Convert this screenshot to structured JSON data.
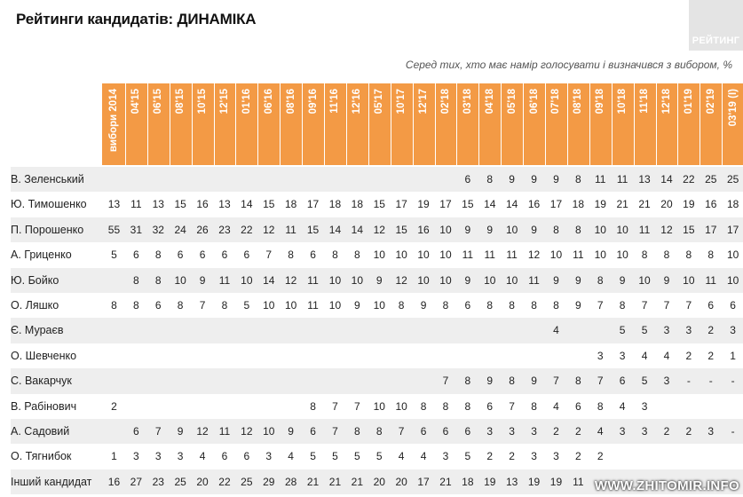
{
  "title": "Рейтинги кандидатів: ДИНАМІКА",
  "logo_text": "РЕЙТИНГ",
  "subtitle": "Серед тих, хто має намір голосувати і визначився з вибором, %",
  "watermark": "WWW.ZHITOMIR.INFO",
  "colors": {
    "header": "#f39a45",
    "row_shade": "#eeeeee"
  },
  "chart_data": {
    "type": "table",
    "columns": [
      "вибори 2014",
      "04'15",
      "06'15",
      "08'15",
      "10'15",
      "12'15",
      "01'16",
      "06'16",
      "08'16",
      "09'16",
      "11'16",
      "12'16",
      "05'17",
      "10'17",
      "12'17",
      "02'18",
      "03'18",
      "04'18",
      "05'18",
      "06'18",
      "07'18",
      "08'18",
      "09'18",
      "10'18",
      "11'18",
      "12'18",
      "01'19",
      "02'19",
      "03'19 (I)"
    ],
    "rows": [
      {
        "name": "В. Зеленський",
        "values": [
          "",
          "",
          "",
          "",
          "",
          "",
          "",
          "",
          "",
          "",
          "",
          "",
          "",
          "",
          "",
          "",
          "6",
          "8",
          "9",
          "9",
          "9",
          "8",
          "11",
          "11",
          "13",
          "14",
          "22",
          "25",
          "25"
        ]
      },
      {
        "name": "Ю. Тимошенко",
        "values": [
          "13",
          "11",
          "13",
          "15",
          "16",
          "13",
          "14",
          "15",
          "18",
          "17",
          "18",
          "18",
          "15",
          "17",
          "19",
          "17",
          "15",
          "14",
          "14",
          "16",
          "17",
          "18",
          "19",
          "21",
          "21",
          "20",
          "19",
          "16",
          "18"
        ]
      },
      {
        "name": "П. Порошенко",
        "values": [
          "55",
          "31",
          "32",
          "24",
          "26",
          "23",
          "22",
          "12",
          "11",
          "15",
          "14",
          "14",
          "12",
          "15",
          "16",
          "10",
          "9",
          "9",
          "10",
          "9",
          "8",
          "8",
          "10",
          "10",
          "11",
          "12",
          "15",
          "17",
          "17"
        ]
      },
      {
        "name": "А. Гриценко",
        "values": [
          "5",
          "6",
          "8",
          "6",
          "6",
          "6",
          "6",
          "7",
          "8",
          "6",
          "8",
          "8",
          "10",
          "10",
          "10",
          "10",
          "11",
          "11",
          "11",
          "12",
          "10",
          "11",
          "10",
          "10",
          "8",
          "8",
          "8",
          "8",
          "10"
        ]
      },
      {
        "name": "Ю. Бойко",
        "values": [
          "",
          "8",
          "8",
          "10",
          "9",
          "11",
          "10",
          "14",
          "12",
          "11",
          "10",
          "10",
          "9",
          "12",
          "10",
          "10",
          "9",
          "10",
          "10",
          "11",
          "9",
          "9",
          "8",
          "9",
          "10",
          "9",
          "10",
          "11",
          "10"
        ]
      },
      {
        "name": "О. Ляшко",
        "values": [
          "8",
          "8",
          "6",
          "8",
          "7",
          "8",
          "5",
          "10",
          "10",
          "11",
          "10",
          "9",
          "10",
          "8",
          "9",
          "8",
          "6",
          "8",
          "8",
          "8",
          "8",
          "9",
          "7",
          "8",
          "7",
          "7",
          "7",
          "6",
          "6"
        ]
      },
      {
        "name": "Є. Мураєв",
        "values": [
          "",
          "",
          "",
          "",
          "",
          "",
          "",
          "",
          "",
          "",
          "",
          "",
          "",
          "",
          "",
          "",
          "",
          "",
          "",
          "",
          "4",
          "",
          "",
          "5",
          "5",
          "3",
          "3",
          "2",
          "3"
        ]
      },
      {
        "name": "О. Шевченко",
        "values": [
          "",
          "",
          "",
          "",
          "",
          "",
          "",
          "",
          "",
          "",
          "",
          "",
          "",
          "",
          "",
          "",
          "",
          "",
          "",
          "",
          "",
          "",
          "3",
          "3",
          "4",
          "4",
          "2",
          "2",
          "1"
        ]
      },
      {
        "name": "С. Вакарчук",
        "values": [
          "",
          "",
          "",
          "",
          "",
          "",
          "",
          "",
          "",
          "",
          "",
          "",
          "",
          "",
          "",
          "7",
          "8",
          "9",
          "8",
          "9",
          "7",
          "8",
          "7",
          "6",
          "5",
          "3",
          "-",
          "-",
          "-"
        ]
      },
      {
        "name": "В. Рабінович",
        "values": [
          "2",
          "",
          "",
          "",
          "",
          "",
          "",
          "",
          "",
          "8",
          "7",
          "7",
          "10",
          "10",
          "8",
          "8",
          "8",
          "6",
          "7",
          "8",
          "4",
          "6",
          "8",
          "4",
          "3",
          "",
          "",
          "",
          ""
        ]
      },
      {
        "name": "А. Садовий",
        "values": [
          "",
          "6",
          "7",
          "9",
          "12",
          "11",
          "12",
          "10",
          "9",
          "6",
          "7",
          "8",
          "8",
          "7",
          "6",
          "6",
          "6",
          "3",
          "3",
          "3",
          "2",
          "2",
          "4",
          "3",
          "3",
          "2",
          "2",
          "3",
          "-"
        ]
      },
      {
        "name": "О. Тягнибок",
        "values": [
          "1",
          "3",
          "3",
          "3",
          "4",
          "6",
          "6",
          "3",
          "4",
          "5",
          "5",
          "5",
          "5",
          "4",
          "4",
          "3",
          "5",
          "2",
          "2",
          "3",
          "3",
          "2",
          "2",
          "",
          "",
          "",
          "",
          "",
          ""
        ]
      },
      {
        "name": "Інший кандидат",
        "values": [
          "16",
          "27",
          "23",
          "25",
          "20",
          "22",
          "25",
          "29",
          "28",
          "21",
          "21",
          "21",
          "20",
          "20",
          "17",
          "21",
          "18",
          "19",
          "13",
          "19",
          "19",
          "11",
          "",
          "",
          "",
          "",
          "",
          "",
          ""
        ]
      }
    ]
  }
}
